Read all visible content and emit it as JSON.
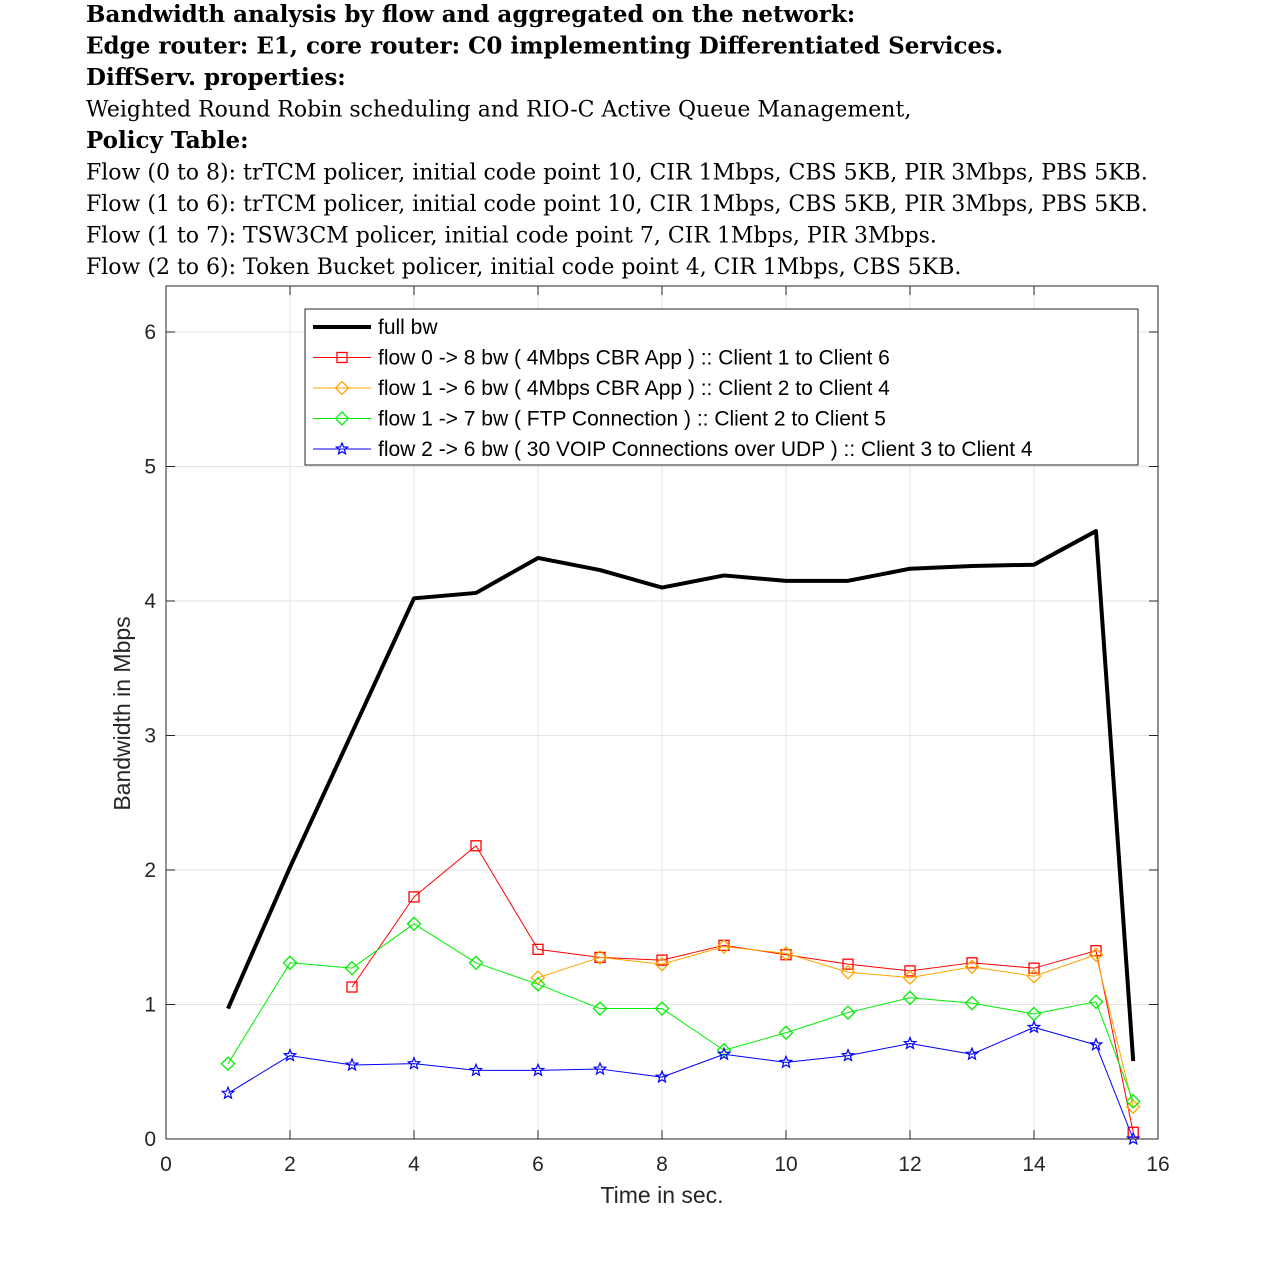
{
  "title_lines": [
    {
      "text": "Bandwidth analysis by flow and aggregated on the network:",
      "bold": true
    },
    {
      "text": "Edge router: E1, core router: C0 implementing Differentiated Services.",
      "bold": true
    },
    {
      "text": "DiffServ. properties:",
      "bold": true
    },
    {
      "text": "Weighted Round Robin scheduling and RIO-C Active Queue Management,",
      "bold": false
    },
    {
      "text": "Policy Table:",
      "bold": true
    },
    {
      "text": "Flow (0 to 8): trTCM policer, initial code point 10, CIR 1Mbps, CBS 5KB, PIR 3Mbps, PBS 5KB.",
      "bold": false
    },
    {
      "text": "Flow (1 to 6): trTCM policer, initial code point 10, CIR 1Mbps, CBS 5KB, PIR 3Mbps, PBS 5KB.",
      "bold": false
    },
    {
      "text": "Flow (1 to 7): TSW3CM policer, initial code point 7, CIR 1Mbps, PIR 3Mbps.",
      "bold": false
    },
    {
      "text": "Flow (2 to 6): Token Bucket policer, initial code point 4, CIR 1Mbps, CBS 5KB.",
      "bold": false
    }
  ],
  "chart_data": {
    "type": "line",
    "xlabel": "Time in sec.",
    "ylabel": "Bandwidth in Mbps",
    "xlim": [
      0,
      16
    ],
    "ylim": [
      0,
      6.3
    ],
    "xticks": [
      0,
      2,
      4,
      6,
      8,
      10,
      12,
      14,
      16
    ],
    "yticks": [
      0,
      1,
      2,
      3,
      4,
      5,
      6
    ],
    "grid": true,
    "legend_position": "top",
    "series": [
      {
        "name": "full bw",
        "color": "#000000",
        "marker": "none",
        "width": 4,
        "x": [
          1,
          2,
          3,
          4,
          5,
          6,
          7,
          8,
          9,
          10,
          11,
          12,
          13,
          14,
          15,
          15.6
        ],
        "y": [
          0.97,
          2.02,
          3.02,
          4.02,
          4.06,
          4.32,
          4.23,
          4.1,
          4.19,
          4.15,
          4.15,
          4.24,
          4.26,
          4.27,
          4.52,
          0.58
        ]
      },
      {
        "name": "flow 0 -> 8 bw ( 4Mbps CBR App ) :: Client 1 to Client 6",
        "color": "#ff0000",
        "marker": "square",
        "width": 1,
        "x": [
          3,
          4,
          5,
          6,
          7,
          8,
          9,
          10,
          11,
          12,
          13,
          14,
          15,
          15.6
        ],
        "y": [
          1.13,
          1.8,
          2.18,
          1.41,
          1.35,
          1.33,
          1.44,
          1.37,
          1.3,
          1.25,
          1.31,
          1.27,
          1.4,
          0.05
        ]
      },
      {
        "name": "flow 1 -> 6 bw ( 4Mbps CBR App ) :: Client 2 to Client 4",
        "color": "#ffa500",
        "marker": "diamond",
        "width": 1,
        "x": [
          6,
          7,
          8,
          9,
          10,
          11,
          12,
          13,
          14,
          15,
          15.6
        ],
        "y": [
          1.2,
          1.35,
          1.3,
          1.43,
          1.38,
          1.24,
          1.2,
          1.28,
          1.21,
          1.37,
          0.24
        ]
      },
      {
        "name": "flow 1 -> 7 bw ( FTP Connection ) :: Client 2 to Client 5",
        "color": "#00ee00",
        "marker": "diamond",
        "width": 1,
        "x": [
          1,
          2,
          3,
          4,
          5,
          6,
          7,
          8,
          9,
          10,
          11,
          12,
          13,
          14,
          15,
          15.6
        ],
        "y": [
          0.56,
          1.31,
          1.27,
          1.6,
          1.31,
          1.15,
          0.97,
          0.97,
          0.66,
          0.79,
          0.94,
          1.05,
          1.01,
          0.93,
          1.02,
          0.28
        ]
      },
      {
        "name": "flow 2 -> 6 bw ( 30 VOIP Connections over UDP ) :: Client 3 to Client 4",
        "color": "#0000ff",
        "marker": "star",
        "width": 1,
        "x": [
          1,
          2,
          3,
          4,
          5,
          6,
          7,
          8,
          9,
          10,
          11,
          12,
          13,
          14,
          15,
          15.6
        ],
        "y": [
          0.34,
          0.62,
          0.55,
          0.56,
          0.51,
          0.51,
          0.52,
          0.46,
          0.63,
          0.57,
          0.62,
          0.71,
          0.63,
          0.83,
          0.7,
          0.0
        ]
      }
    ]
  }
}
